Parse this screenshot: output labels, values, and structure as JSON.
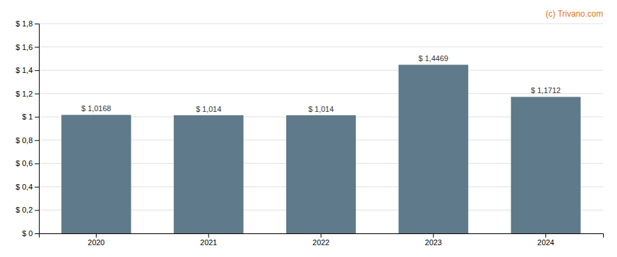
{
  "chart_data": {
    "type": "bar",
    "categories": [
      "2020",
      "2021",
      "2022",
      "2023",
      "2024"
    ],
    "values": [
      1.0168,
      1.014,
      1.014,
      1.4469,
      1.1712
    ],
    "value_labels": [
      "$ 1,0168",
      "$ 1,014",
      "$ 1,014",
      "$ 1,4469",
      "$ 1,1712"
    ],
    "color": "#5f7a8a",
    "ylim": [
      0,
      1.8
    ],
    "yticks": [
      {
        "value": 0,
        "label": "$ 0"
      },
      {
        "value": 0.2,
        "label": "$ 0,2"
      },
      {
        "value": 0.4,
        "label": "$ 0,4"
      },
      {
        "value": 0.6,
        "label": "$ 0,6"
      },
      {
        "value": 0.8,
        "label": "$ 0,8"
      },
      {
        "value": 1.0,
        "label": "$ 1"
      },
      {
        "value": 1.2,
        "label": "$ 1,2"
      },
      {
        "value": 1.4,
        "label": "$ 1,4"
      },
      {
        "value": 1.6,
        "label": "$ 1,6"
      },
      {
        "value": 1.8,
        "label": "$ 1,8"
      }
    ],
    "grid": true,
    "annotations": [
      {
        "text": "(c) Trivano.com",
        "color": "#e07820"
      }
    ]
  }
}
